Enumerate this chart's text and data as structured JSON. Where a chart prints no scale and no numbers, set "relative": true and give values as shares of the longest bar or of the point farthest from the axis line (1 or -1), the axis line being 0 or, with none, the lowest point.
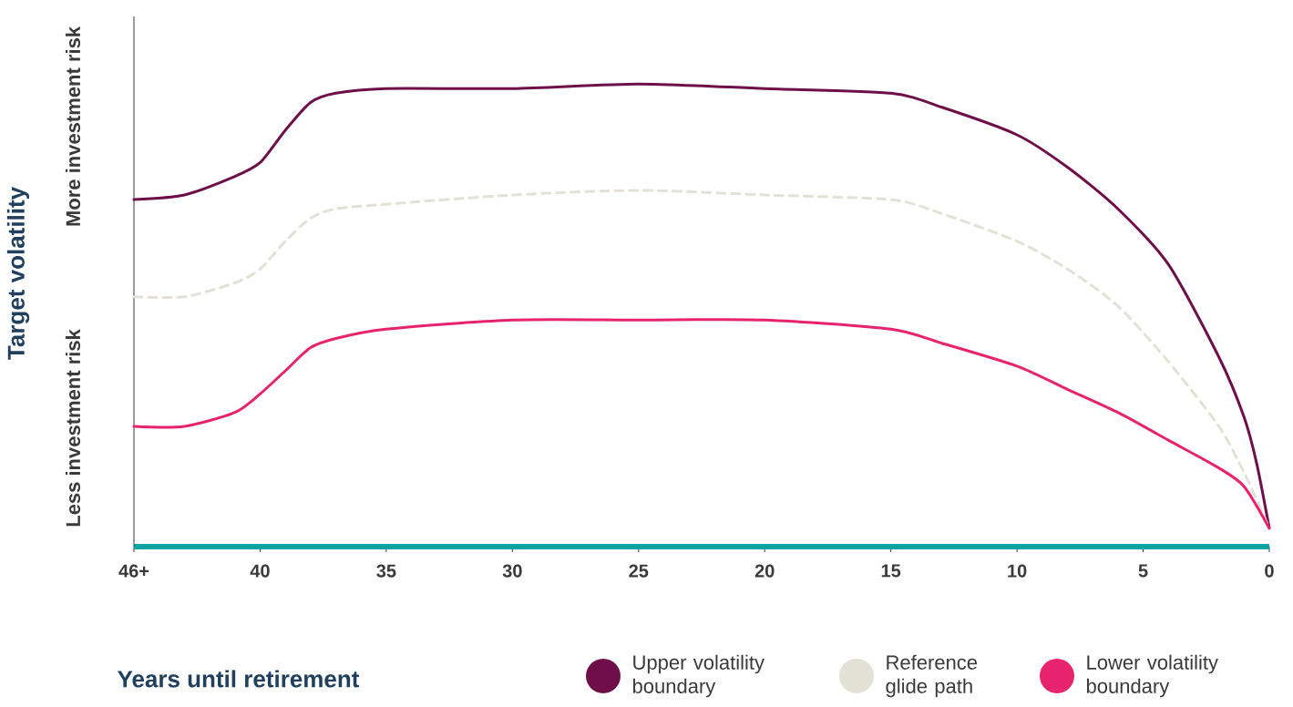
{
  "chart_data": {
    "type": "line",
    "relative": true,
    "xlabel": "Years until retirement",
    "ylabel": "Target volatility",
    "annotations": [
      "More investment risk",
      "Less investment risk"
    ],
    "xlim": [
      45,
      0
    ],
    "xticks": [
      {
        "value": 45,
        "label": "46+"
      },
      40,
      35,
      30,
      25,
      20,
      15,
      10,
      5,
      0
    ],
    "legend": "bottom right",
    "marker": "none",
    "series": [
      {
        "name": "Upper volatility boundary",
        "color": "#6e0f4a",
        "line_style": "solid",
        "x": [
          45,
          43,
          41,
          40,
          39,
          38,
          37,
          35,
          30,
          25,
          20,
          15,
          13,
          10,
          8,
          6,
          4,
          2,
          1,
          0.5,
          0
        ],
        "values": [
          0.75,
          0.76,
          0.8,
          0.83,
          0.9,
          0.96,
          0.98,
          0.99,
          0.99,
          1,
          0.99,
          0.98,
          0.95,
          0.89,
          0.82,
          0.73,
          0.61,
          0.41,
          0.28,
          0.18,
          0.04
        ]
      },
      {
        "name": "Reference glide path",
        "color": "#e3e1d6",
        "line_style": "dashed",
        "x": [
          45,
          43,
          41,
          40,
          39,
          38,
          37,
          35,
          30,
          25,
          20,
          15,
          13,
          10,
          8,
          6,
          4,
          2,
          1,
          0
        ],
        "values": [
          0.54,
          0.54,
          0.57,
          0.6,
          0.66,
          0.71,
          0.73,
          0.74,
          0.76,
          0.77,
          0.76,
          0.75,
          0.72,
          0.66,
          0.6,
          0.52,
          0.4,
          0.26,
          0.16,
          0.04
        ]
      },
      {
        "name": "Lower volatility boundary",
        "color": "#e8236e",
        "line_style": "solid",
        "x": [
          45,
          43,
          41,
          40,
          39,
          38,
          37,
          35,
          30,
          25,
          20,
          15,
          13,
          10,
          8,
          6,
          4,
          2,
          1,
          0
        ],
        "values": [
          0.26,
          0.26,
          0.29,
          0.33,
          0.38,
          0.43,
          0.45,
          0.47,
          0.49,
          0.49,
          0.49,
          0.47,
          0.44,
          0.39,
          0.34,
          0.29,
          0.23,
          0.17,
          0.13,
          0.04
        ]
      }
    ]
  }
}
